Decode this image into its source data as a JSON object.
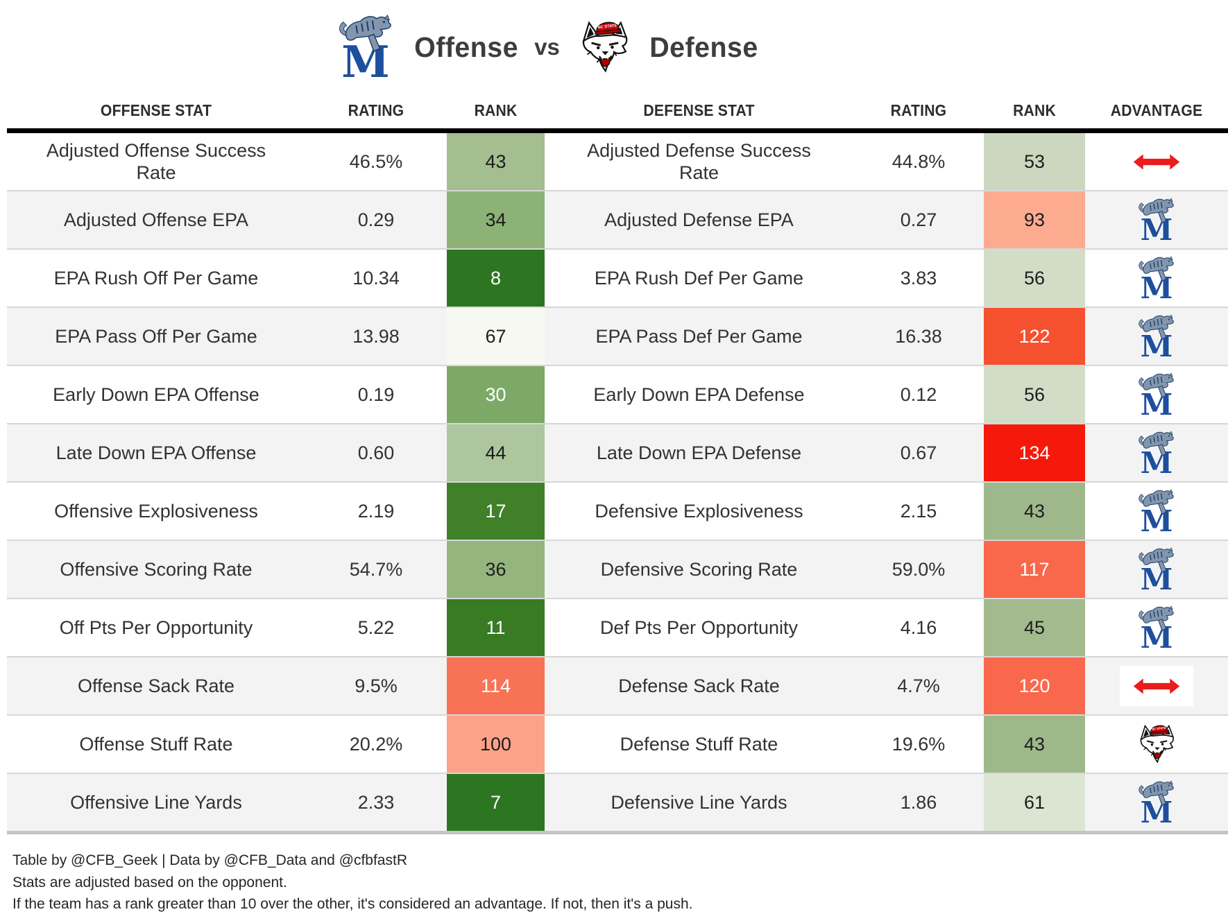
{
  "header": {
    "offense_label": "Offense",
    "vs_label": "vs",
    "defense_label": "Defense"
  },
  "icons": {
    "memphis": "memphis-tigers-logo",
    "ncstate": "nc-state-wolfpack-logo",
    "push": "push-double-arrow",
    "memphis_letter": "M",
    "ncstate_cap_text": "NC STATE"
  },
  "colors": {
    "advantage_arrow_red": "#ea1c1c",
    "memphis_blue": "#1d4f9e",
    "ncstate_red": "#cc0001",
    "header_rule": "#000000",
    "row_alt_bg": "#f3f3f3",
    "row_divider": "#d7d7d7",
    "table_bottom_rule": "#c4c4c4"
  },
  "chart_data": {
    "type": "table",
    "title": "Memphis Offense vs NC State Defense",
    "columns": [
      "OFFENSE STAT",
      "RATING",
      "RANK",
      "DEFENSE STAT",
      "RATING",
      "RANK",
      "ADVANTAGE"
    ],
    "rows": [
      {
        "offense_stat": "Adjusted Offense Success Rate",
        "offense_rating": "46.5%",
        "offense_rank": "43",
        "offense_rank_bg": "#a4be90",
        "offense_rank_fg": "#1d1d1d",
        "defense_stat": "Adjusted Defense Success Rate",
        "defense_rating": "44.8%",
        "defense_rank": "53",
        "defense_rank_bg": "#cbd8bf",
        "defense_rank_fg": "#1d1d1d",
        "advantage": "push"
      },
      {
        "offense_stat": "Adjusted Offense EPA",
        "offense_rating": "0.29",
        "offense_rank": "34",
        "offense_rank_bg": "#8db277",
        "offense_rank_fg": "#1d1d1d",
        "defense_stat": "Adjusted Defense EPA",
        "defense_rating": "0.27",
        "defense_rank": "93",
        "defense_rank_bg": "#fcab91",
        "defense_rank_fg": "#1d1d1d",
        "advantage": "memphis"
      },
      {
        "offense_stat": "EPA Rush Off Per Game",
        "offense_rating": "10.34",
        "offense_rank": "8",
        "offense_rank_bg": "#2d7621",
        "offense_rank_fg": "#ffffff",
        "defense_stat": "EPA Rush Def Per Game",
        "defense_rating": "3.83",
        "defense_rank": "56",
        "defense_rank_bg": "#d2ddc8",
        "defense_rank_fg": "#1d1d1d",
        "advantage": "memphis"
      },
      {
        "offense_stat": "EPA Pass Off Per Game",
        "offense_rating": "13.98",
        "offense_rank": "67",
        "offense_rank_bg": "#f8f8f3",
        "offense_rank_fg": "#1d1d1d",
        "defense_stat": "EPA Pass Def Per Game",
        "defense_rating": "16.38",
        "defense_rank": "122",
        "defense_rank_bg": "#f5512f",
        "defense_rank_fg": "#ffffff",
        "advantage": "memphis"
      },
      {
        "offense_stat": "Early Down EPA Offense",
        "offense_rating": "0.19",
        "offense_rank": "30",
        "offense_rank_bg": "#7da966",
        "offense_rank_fg": "#ffffff",
        "defense_stat": "Early Down EPA Defense",
        "defense_rating": "0.12",
        "defense_rank": "56",
        "defense_rank_bg": "#d2ddc8",
        "defense_rank_fg": "#1d1d1d",
        "advantage": "memphis"
      },
      {
        "offense_stat": "Late Down EPA Offense",
        "offense_rating": "0.60",
        "offense_rank": "44",
        "offense_rank_bg": "#adc69d",
        "offense_rank_fg": "#1d1d1d",
        "defense_stat": "Late Down EPA Defense",
        "defense_rating": "0.67",
        "defense_rank": "134",
        "defense_rank_bg": "#f6190b",
        "defense_rank_fg": "#ffffff",
        "advantage": "memphis"
      },
      {
        "offense_stat": "Offensive Explosiveness",
        "offense_rating": "2.19",
        "offense_rank": "17",
        "offense_rank_bg": "#3f8028",
        "offense_rank_fg": "#ffffff",
        "defense_stat": "Defensive Explosiveness",
        "defense_rating": "2.15",
        "defense_rank": "43",
        "defense_rank_bg": "#9fb88b",
        "defense_rank_fg": "#1d1d1d",
        "advantage": "memphis"
      },
      {
        "offense_stat": "Offensive Scoring Rate",
        "offense_rating": "54.7%",
        "offense_rank": "36",
        "offense_rank_bg": "#95b57f",
        "offense_rank_fg": "#1d1d1d",
        "defense_stat": "Defensive Scoring Rate",
        "defense_rating": "59.0%",
        "defense_rank": "117",
        "defense_rank_bg": "#f9684a",
        "defense_rank_fg": "#ffffff",
        "advantage": "memphis"
      },
      {
        "offense_stat": "Off Pts Per Opportunity",
        "offense_rating": "5.22",
        "offense_rank": "11",
        "offense_rank_bg": "#387b22",
        "offense_rank_fg": "#ffffff",
        "defense_stat": "Def Pts Per Opportunity",
        "defense_rating": "4.16",
        "defense_rank": "45",
        "defense_rank_bg": "#a3ba8f",
        "defense_rank_fg": "#1d1d1d",
        "advantage": "memphis"
      },
      {
        "offense_stat": "Offense Sack Rate",
        "offense_rating": "9.5%",
        "offense_rank": "114",
        "offense_rank_bg": "#f87355",
        "offense_rank_fg": "#ffffff",
        "defense_stat": "Defense Sack Rate",
        "defense_rating": "4.7%",
        "defense_rank": "120",
        "defense_rank_bg": "#f9684c",
        "defense_rank_fg": "#ffffff",
        "advantage": "push"
      },
      {
        "offense_stat": "Offense Stuff Rate",
        "offense_rating": "20.2%",
        "offense_rank": "100",
        "offense_rank_bg": "#fba288",
        "offense_rank_fg": "#1d1d1d",
        "defense_stat": "Defense Stuff Rate",
        "defense_rating": "19.6%",
        "defense_rank": "43",
        "defense_rank_bg": "#9db889",
        "defense_rank_fg": "#1d1d1d",
        "advantage": "ncstate"
      },
      {
        "offense_stat": "Offensive Line Yards",
        "offense_rating": "2.33",
        "offense_rank": "7",
        "offense_rank_bg": "#2d7621",
        "offense_rank_fg": "#ffffff",
        "defense_stat": "Defensive Line Yards",
        "defense_rating": "1.86",
        "defense_rank": "61",
        "defense_rank_bg": "#dbe5d2",
        "defense_rank_fg": "#1d1d1d",
        "advantage": "memphis"
      }
    ]
  },
  "footer": {
    "lines": [
      "Table by @CFB_Geek | Data by @CFB_Data and @cfbfastR",
      "Stats are adjusted based on the opponent.",
      "If the team has a rank greater than 10 over the other, it's considered an advantage. If not, then it's a push."
    ]
  }
}
